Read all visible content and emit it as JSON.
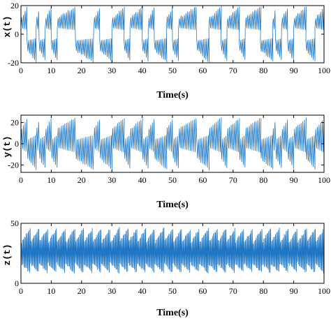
{
  "chart_data": [
    {
      "type": "line",
      "xlabel": "Time(s)",
      "ylabel": "x(t)",
      "xlim": [
        0,
        100
      ],
      "ylim": [
        -20,
        20
      ],
      "xticks": [
        0,
        10,
        20,
        30,
        40,
        50,
        60,
        70,
        80,
        90,
        100
      ],
      "yticks": [
        -20,
        0,
        20
      ],
      "grid": false,
      "color": "#1f77c4",
      "series": [
        {
          "description": "chaotic oscillation switching between upper (~+5..+20) and lower (~-20..-5) lobes",
          "regimes": [
            [
              0,
              2,
              "upper"
            ],
            [
              2,
              5,
              "lower"
            ],
            [
              5,
              6,
              "upper"
            ],
            [
              6,
              8,
              "lower"
            ],
            [
              8,
              10,
              "upper"
            ],
            [
              10,
              12,
              "lower"
            ],
            [
              12,
              18,
              "upper"
            ],
            [
              18,
              24,
              "lower"
            ],
            [
              24,
              26,
              "upper"
            ],
            [
              26,
              30,
              "lower"
            ],
            [
              30,
              34,
              "upper"
            ],
            [
              34,
              36,
              "lower"
            ],
            [
              36,
              40,
              "upper"
            ],
            [
              40,
              42,
              "lower"
            ],
            [
              42,
              44,
              "upper"
            ],
            [
              44,
              48,
              "lower"
            ],
            [
              48,
              50,
              "upper"
            ],
            [
              50,
              52,
              "lower"
            ],
            [
              52,
              58,
              "upper"
            ],
            [
              58,
              62,
              "lower"
            ],
            [
              62,
              66,
              "upper"
            ],
            [
              66,
              68,
              "lower"
            ],
            [
              68,
              72,
              "upper"
            ],
            [
              72,
              74,
              "lower"
            ],
            [
              74,
              79,
              "upper"
            ],
            [
              79,
              83,
              "lower"
            ],
            [
              83,
              84,
              "upper"
            ],
            [
              84,
              86,
              "lower"
            ],
            [
              86,
              88,
              "upper"
            ],
            [
              88,
              90,
              "lower"
            ],
            [
              90,
              94,
              "upper"
            ],
            [
              94,
              97,
              "lower"
            ],
            [
              97,
              100,
              "upper"
            ]
          ]
        }
      ]
    },
    {
      "type": "line",
      "xlabel": "Time(s)",
      "ylabel": "y(t)",
      "xlim": [
        0,
        100
      ],
      "ylim": [
        -27,
        27
      ],
      "xticks": [
        0,
        10,
        20,
        30,
        40,
        50,
        60,
        70,
        80,
        90,
        100
      ],
      "yticks": [
        -20,
        0,
        20
      ],
      "grid": false,
      "color": "#1f77c4",
      "series": [
        {
          "description": "chaotic oscillation with spikes reaching about +/-25",
          "regimes": [
            [
              0,
              2,
              "upper"
            ],
            [
              2,
              5,
              "lower"
            ],
            [
              5,
              6,
              "upper"
            ],
            [
              6,
              8,
              "lower"
            ],
            [
              8,
              10,
              "upper"
            ],
            [
              10,
              12,
              "lower"
            ],
            [
              12,
              18,
              "upper"
            ],
            [
              18,
              24,
              "lower"
            ],
            [
              24,
              26,
              "upper"
            ],
            [
              26,
              30,
              "lower"
            ],
            [
              30,
              34,
              "upper"
            ],
            [
              34,
              36,
              "lower"
            ],
            [
              36,
              40,
              "upper"
            ],
            [
              40,
              42,
              "lower"
            ],
            [
              42,
              44,
              "upper"
            ],
            [
              44,
              48,
              "lower"
            ],
            [
              48,
              50,
              "upper"
            ],
            [
              50,
              52,
              "lower"
            ],
            [
              52,
              58,
              "upper"
            ],
            [
              58,
              62,
              "lower"
            ],
            [
              62,
              66,
              "upper"
            ],
            [
              66,
              68,
              "lower"
            ],
            [
              68,
              72,
              "upper"
            ],
            [
              72,
              74,
              "lower"
            ],
            [
              74,
              79,
              "upper"
            ],
            [
              79,
              83,
              "lower"
            ],
            [
              83,
              84,
              "upper"
            ],
            [
              84,
              86,
              "lower"
            ],
            [
              86,
              88,
              "upper"
            ],
            [
              88,
              90,
              "lower"
            ],
            [
              90,
              94,
              "upper"
            ],
            [
              94,
              97,
              "lower"
            ],
            [
              97,
              100,
              "upper"
            ]
          ]
        }
      ]
    },
    {
      "type": "line",
      "xlabel": "Time(s)",
      "ylabel": "z(t)",
      "xlim": [
        0,
        100
      ],
      "ylim": [
        0,
        50
      ],
      "xticks": [
        0,
        10,
        20,
        30,
        40,
        50,
        60,
        70,
        80,
        90,
        100
      ],
      "yticks": [
        0,
        50
      ],
      "grid": false,
      "color": "#1f77c4",
      "series": [
        {
          "description": "dense positive oscillation between roughly 8 and 45",
          "range": [
            8,
            45
          ]
        }
      ]
    }
  ]
}
